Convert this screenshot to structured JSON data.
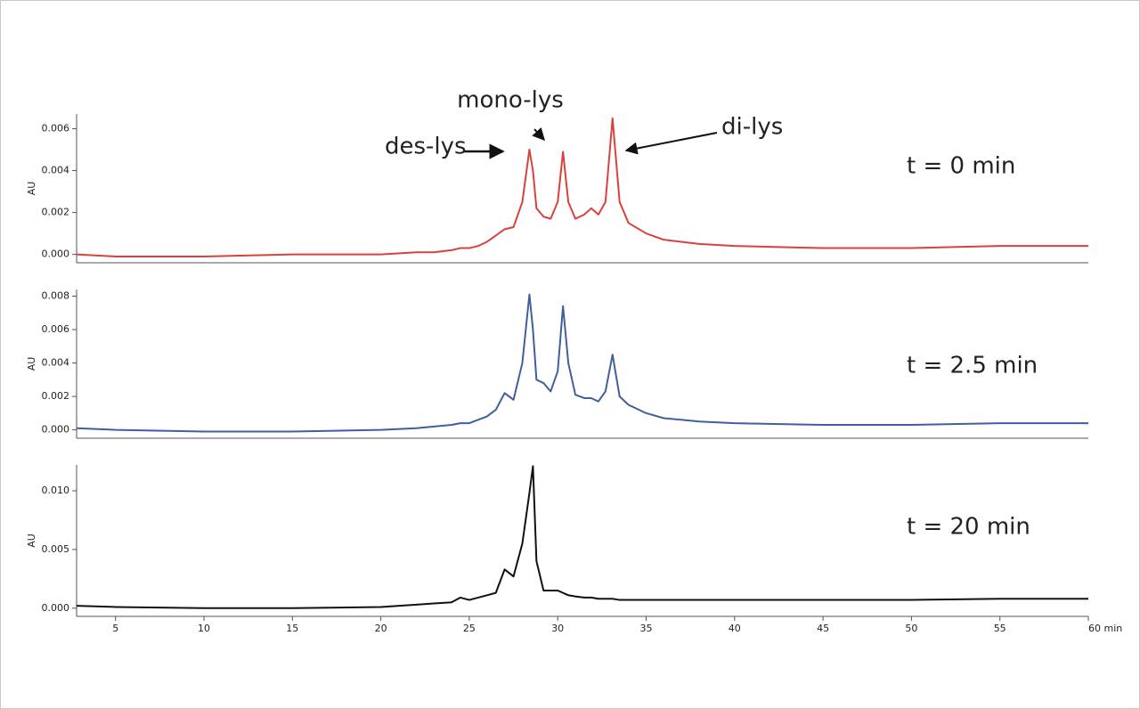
{
  "chart_data": [
    {
      "type": "line",
      "ylabel": "AU",
      "label": "t = 0 min",
      "color": "#d9413a",
      "annotations": [
        "des-lys",
        "mono-lys",
        "di-lys"
      ],
      "xlim": [
        2.8,
        60
      ],
      "ylim": [
        -0.0004,
        0.0067
      ],
      "yticks": [
        {
          "value": 0,
          "label": "0.000"
        },
        {
          "value": 0.002,
          "label": "0.002"
        },
        {
          "value": 0.004,
          "label": "0.004"
        },
        {
          "value": 0.006,
          "label": "0.006"
        }
      ],
      "x": [
        2.8,
        5,
        10,
        15,
        20,
        22,
        23,
        24,
        24.5,
        25,
        25.5,
        26,
        26.5,
        27,
        27.5,
        28,
        28.4,
        28.6,
        28.8,
        29.2,
        29.6,
        30,
        30.3,
        30.6,
        31,
        31.5,
        31.9,
        32.3,
        32.7,
        33.1,
        33.5,
        34,
        35,
        36,
        38,
        40,
        45,
        50,
        55,
        60
      ],
      "values": [
        0.0,
        -0.0001,
        -0.0001,
        0.0,
        0.0,
        0.0001,
        0.0001,
        0.0002,
        0.0003,
        0.0003,
        0.0004,
        0.0006,
        0.0009,
        0.0012,
        0.0013,
        0.0025,
        0.005,
        0.004,
        0.0022,
        0.0018,
        0.0017,
        0.0025,
        0.0049,
        0.0025,
        0.0017,
        0.0019,
        0.0022,
        0.0019,
        0.0025,
        0.0065,
        0.0025,
        0.0015,
        0.001,
        0.0007,
        0.0005,
        0.0004,
        0.0003,
        0.0003,
        0.0004,
        0.0004
      ]
    },
    {
      "type": "line",
      "ylabel": "AU",
      "label": "t = 2.5 min",
      "color": "#3f5f9e",
      "xlim": [
        2.8,
        60
      ],
      "ylim": [
        -0.0005,
        0.0084
      ],
      "yticks": [
        {
          "value": 0,
          "label": "0.000"
        },
        {
          "value": 0.002,
          "label": "0.002"
        },
        {
          "value": 0.004,
          "label": "0.004"
        },
        {
          "value": 0.006,
          "label": "0.006"
        },
        {
          "value": 0.008,
          "label": "0.008"
        }
      ],
      "x": [
        2.8,
        5,
        10,
        15,
        20,
        22,
        23,
        24,
        24.5,
        25,
        25.5,
        26,
        26.5,
        27,
        27.5,
        28,
        28.4,
        28.6,
        28.8,
        29.2,
        29.6,
        30,
        30.3,
        30.6,
        31,
        31.5,
        31.9,
        32.3,
        32.7,
        33.1,
        33.5,
        34,
        35,
        36,
        38,
        40,
        45,
        50,
        55,
        60
      ],
      "values": [
        0.0001,
        0.0,
        -0.0001,
        -0.0001,
        0.0,
        0.0001,
        0.0002,
        0.0003,
        0.0004,
        0.0004,
        0.0006,
        0.0008,
        0.0012,
        0.0022,
        0.0018,
        0.004,
        0.0081,
        0.006,
        0.003,
        0.0028,
        0.0023,
        0.0035,
        0.0074,
        0.004,
        0.0021,
        0.0019,
        0.0019,
        0.0017,
        0.0023,
        0.0045,
        0.002,
        0.0015,
        0.001,
        0.0007,
        0.0005,
        0.0004,
        0.0003,
        0.0003,
        0.0004,
        0.0004
      ]
    },
    {
      "type": "line",
      "ylabel": "AU",
      "label": "t = 20 min",
      "color": "#111111",
      "xlim": [
        2.8,
        60
      ],
      "ylim": [
        -0.0007,
        0.0122
      ],
      "yticks": [
        {
          "value": 0,
          "label": "0.000"
        },
        {
          "value": 0.005,
          "label": "0.005"
        },
        {
          "value": 0.01,
          "label": "0.010"
        }
      ],
      "xticks": [
        5,
        10,
        15,
        20,
        25,
        30,
        35,
        40,
        45,
        50,
        55,
        {
          "value": 60,
          "label": "60 min"
        }
      ],
      "x": [
        2.8,
        5,
        10,
        15,
        20,
        22,
        23,
        24,
        24.5,
        25,
        25.5,
        26,
        26.5,
        27,
        27.5,
        28,
        28.4,
        28.6,
        28.8,
        29.2,
        29.6,
        30,
        30.3,
        30.6,
        31,
        31.5,
        31.9,
        32.3,
        32.7,
        33.1,
        33.5,
        34,
        35,
        36,
        38,
        40,
        45,
        50,
        55,
        60
      ],
      "values": [
        0.0002,
        0.0001,
        0.0,
        0.0,
        0.0001,
        0.0003,
        0.0004,
        0.0005,
        0.0009,
        0.0007,
        0.0009,
        0.0011,
        0.0013,
        0.0033,
        0.0027,
        0.0055,
        0.0098,
        0.0121,
        0.004,
        0.0015,
        0.0015,
        0.0015,
        0.0013,
        0.0011,
        0.001,
        0.0009,
        0.0009,
        0.0008,
        0.0008,
        0.0008,
        0.0007,
        0.0007,
        0.0007,
        0.0007,
        0.0007,
        0.0007,
        0.0007,
        0.0007,
        0.0008,
        0.0008
      ]
    }
  ]
}
